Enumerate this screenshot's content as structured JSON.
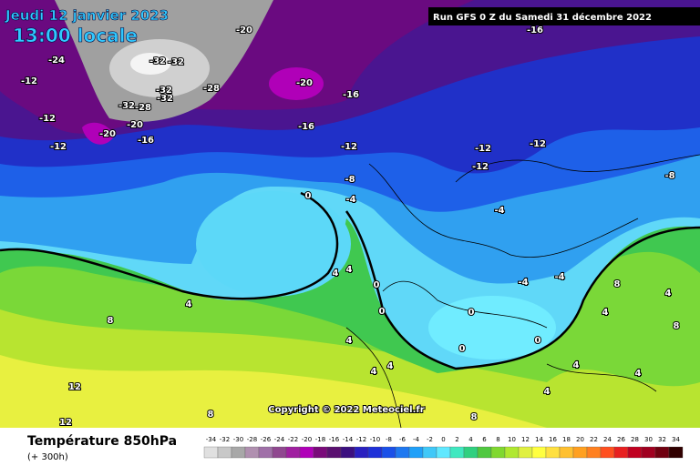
{
  "header": {
    "date": "Jeudi 12 janvier 2023",
    "time": "13:00 locale",
    "run": "Run GFS 0 Z du Samedi 31 décembre 2022"
  },
  "copyright": "Copyright © 2022 Meteociel.fr",
  "footer": {
    "title": "Température 850hPa",
    "subtitle": "(+ 300h)"
  },
  "legend": {
    "ticks": [
      -34,
      -32,
      -30,
      -28,
      -26,
      -24,
      -22,
      -20,
      -18,
      -16,
      -14,
      -12,
      -10,
      -8,
      -6,
      -4,
      -2,
      0,
      2,
      4,
      6,
      8,
      10,
      12,
      14,
      16,
      18,
      20,
      22,
      24,
      26,
      28,
      30,
      32,
      34
    ],
    "colors": [
      "#e0e0e0",
      "#c8c8c8",
      "#a8a8a8",
      "#b090b0",
      "#a070a8",
      "#904890",
      "#a020a0",
      "#b000b8",
      "#7a0a7a",
      "#5a1070",
      "#3c1080",
      "#2a20c0",
      "#1e30d8",
      "#1a50e8",
      "#1e78f0",
      "#20a0f8",
      "#40c8f8",
      "#60e8ff",
      "#40e8c0",
      "#30d080",
      "#50c840",
      "#80d830",
      "#b0e830",
      "#e0f040",
      "#ffff40",
      "#ffe040",
      "#ffc030",
      "#ffa020",
      "#ff8020",
      "#ff5020",
      "#e82020",
      "#c00020",
      "#a00020",
      "#700010",
      "#300000"
    ]
  },
  "contour_labels": [
    -20,
    -24,
    -32,
    -32,
    -12,
    -32,
    -28,
    -32,
    -28,
    -32,
    -20,
    -16,
    -16,
    -12,
    -20,
    -20,
    -16,
    -16,
    -12,
    -12,
    -12,
    -12,
    -12,
    -8,
    -8,
    -4,
    0,
    -4,
    -4,
    -4,
    4,
    4,
    0,
    0,
    0,
    0,
    0,
    4,
    8,
    4,
    4,
    8,
    4,
    4,
    4,
    8,
    4,
    12,
    12,
    8,
    8,
    4,
    4
  ]
}
